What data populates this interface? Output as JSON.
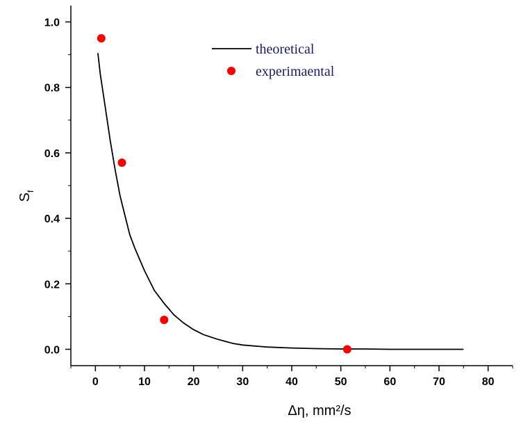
{
  "chart_data": {
    "type": "line",
    "xlabel": "Δη, mm²/s",
    "ylabel": "S_f",
    "xlim": [
      -5,
      85
    ],
    "ylim": [
      -0.05,
      1.05
    ],
    "x_ticks": [
      0,
      10,
      20,
      30,
      40,
      50,
      60,
      70,
      80
    ],
    "x_tick_labels": [
      "0",
      "10",
      "20",
      "30",
      "40",
      "50",
      "60",
      "70",
      "80"
    ],
    "y_ticks": [
      0.0,
      0.2,
      0.4,
      0.6,
      0.8,
      1.0
    ],
    "y_tick_labels": [
      "0.0",
      "0.2",
      "0.4",
      "0.6",
      "0.8",
      "1.0"
    ],
    "grid": false,
    "legend": "top-center",
    "series": [
      {
        "name": "theoretical",
        "kind": "line",
        "color": "#000000",
        "x": [
          0.5,
          1,
          2,
          3,
          4,
          5,
          6,
          7,
          8,
          10,
          12,
          14,
          16,
          18,
          20,
          22,
          25,
          28,
          30,
          35,
          40,
          45,
          50,
          55,
          60,
          65,
          70,
          75
        ],
        "y": [
          0.905,
          0.84,
          0.74,
          0.64,
          0.55,
          0.47,
          0.41,
          0.35,
          0.31,
          0.24,
          0.18,
          0.14,
          0.105,
          0.08,
          0.06,
          0.045,
          0.03,
          0.018,
          0.013,
          0.007,
          0.004,
          0.002,
          0.001,
          0.001,
          0.0,
          0.0,
          0.0,
          0.0
        ]
      },
      {
        "name": "experimaental",
        "kind": "scatter",
        "color": "#ff0000",
        "x": [
          1.2,
          5.4,
          14.0,
          51.3
        ],
        "y": [
          0.95,
          0.57,
          0.09,
          0.0
        ]
      }
    ]
  }
}
